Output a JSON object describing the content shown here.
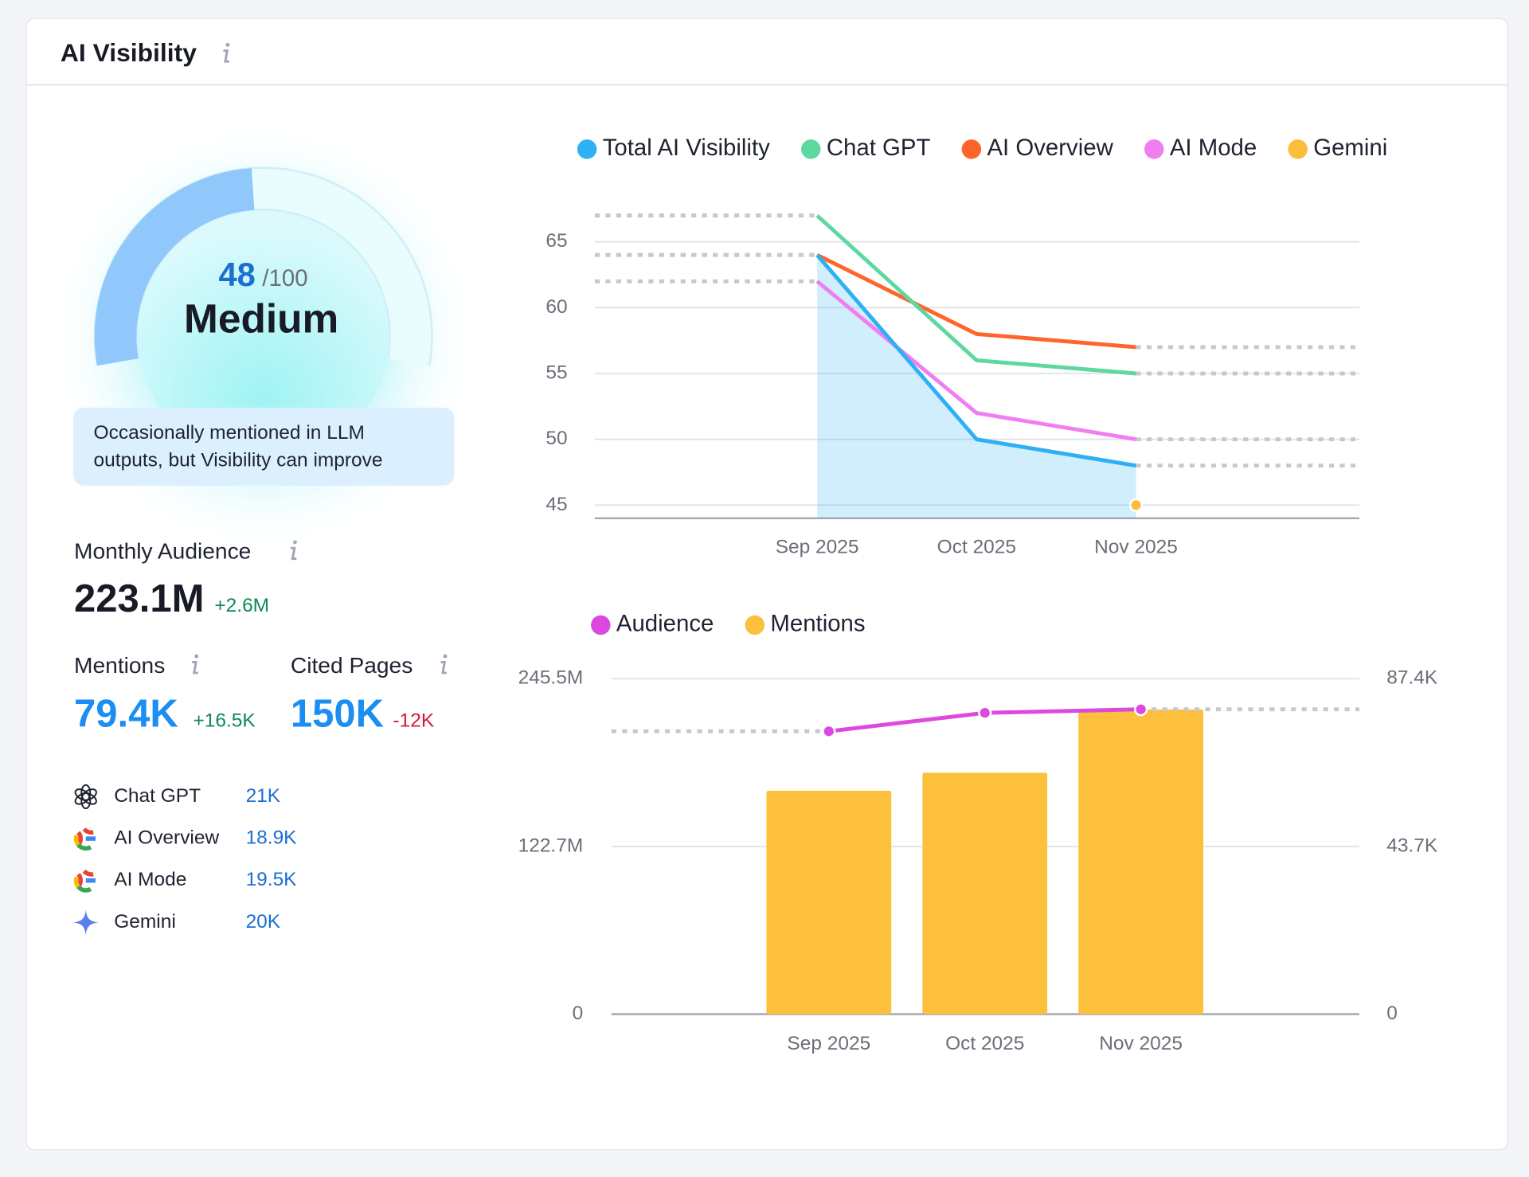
{
  "header": {
    "title": "AI Visibility"
  },
  "score": {
    "value": 48,
    "max": {
      "value": 100,
      "label": "/100"
    },
    "level": "Medium",
    "description": "Occasionally mentioned in LLM outputs, but Visibility can improve"
  },
  "stats": {
    "audience": {
      "label": "Monthly Audience",
      "value": "223.1M",
      "change": "+2.6M"
    },
    "mentions": {
      "label": "Mentions",
      "value": "79.4K",
      "change": "+16.5K"
    },
    "cited_pages": {
      "label": "Cited Pages",
      "value": "150K",
      "change": "-12K"
    }
  },
  "sources": [
    {
      "name": "Chat GPT",
      "value": "21K"
    },
    {
      "name": "AI Overview",
      "value": "18.9K"
    },
    {
      "name": "AI Mode",
      "value": "19.5K"
    },
    {
      "name": "Gemini",
      "value": "20K"
    }
  ],
  "chart_data": [
    {
      "type": "line",
      "categories": [
        "Sep 2025",
        "Oct 2025",
        "Nov 2025"
      ],
      "series": [
        {
          "name": "Total AI Visibility",
          "color": "#2fb0f5",
          "values": [
            64,
            50,
            48
          ]
        },
        {
          "name": "Chat GPT",
          "color": "#5ed8a0",
          "values": [
            67,
            56,
            55
          ]
        },
        {
          "name": "AI Overview",
          "color": "#ff642d",
          "values": [
            64,
            58,
            57
          ]
        },
        {
          "name": "AI Mode",
          "color": "#f07ef0",
          "values": [
            62,
            52,
            50
          ]
        },
        {
          "name": "Gemini",
          "color": "#fbbd3a",
          "values": [
            null,
            null,
            45
          ]
        }
      ],
      "ylim": [
        44,
        67
      ],
      "yticks": [
        45,
        50,
        55,
        60,
        65
      ],
      "grid": true
    },
    {
      "type": "combo",
      "categories": [
        "Sep 2025",
        "Oct 2025",
        "Nov 2025"
      ],
      "series": [
        {
          "name": "Audience",
          "type": "line",
          "color": "#dc48e0",
          "values": [
            207000000,
            220500000,
            223100000
          ]
        },
        {
          "name": "Mentions",
          "type": "bar",
          "axis": "y2",
          "color": "#fcc03c",
          "values": [
            58200,
            62900,
            79400
          ]
        }
      ],
      "ylim": [
        0,
        245500000
      ],
      "yticks": [
        0,
        {
          "value": 122700000,
          "label": "122.7M"
        },
        {
          "value": 245500000,
          "label": "245.5M"
        }
      ],
      "y2lim": [
        0,
        87400
      ],
      "y2ticks": [
        0,
        {
          "value": 43700,
          "label": "43.7K"
        },
        {
          "value": 87400,
          "label": "87.4K"
        }
      ],
      "grid": true
    }
  ]
}
